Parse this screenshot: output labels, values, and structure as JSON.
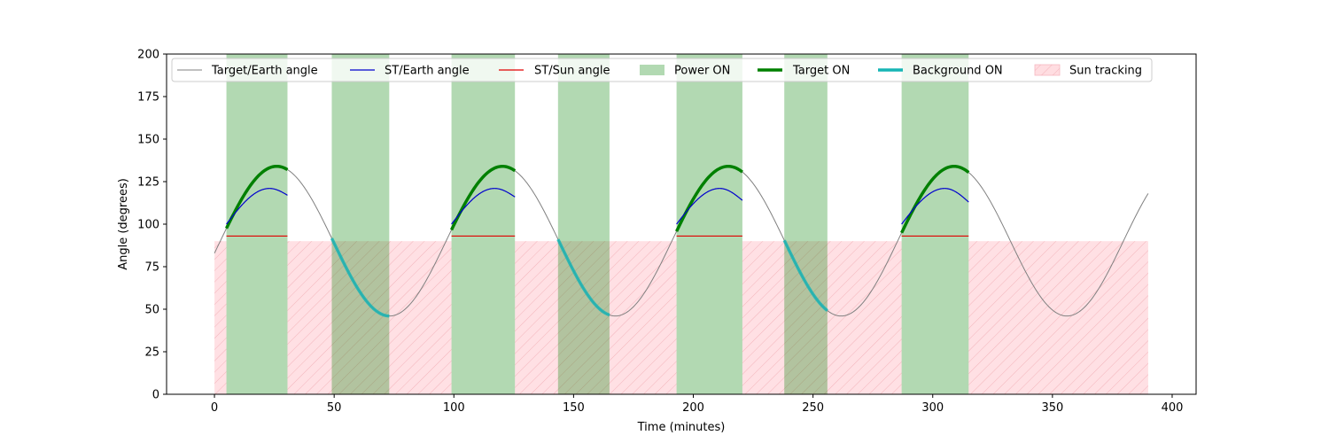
{
  "chart_data": {
    "type": "line",
    "title": "",
    "xlabel": "Time (minutes)",
    "ylabel": "Angle (degrees)",
    "xlim": [
      -20,
      410
    ],
    "ylim": [
      0,
      200
    ],
    "xticks": [
      0,
      50,
      100,
      150,
      200,
      250,
      300,
      350,
      400
    ],
    "yticks": [
      0,
      25,
      50,
      75,
      100,
      125,
      150,
      175,
      200
    ],
    "grid": false,
    "legend_position": "top",
    "period_minutes": 94.3,
    "target_earth_angle": {
      "mean": 90,
      "amplitude": 44,
      "phase_peak_minutes": 26
    },
    "series": [
      {
        "name": "Target/Earth angle",
        "color": "#808080",
        "kind": "line"
      },
      {
        "name": "ST/Earth angle",
        "color": "#0000cd",
        "kind": "line"
      },
      {
        "name": "ST/Sun angle",
        "color": "#e00000",
        "kind": "line"
      },
      {
        "name": "Power ON",
        "color": "#b3d9b3",
        "kind": "band"
      },
      {
        "name": "Target ON",
        "color": "#008000",
        "kind": "thick-line"
      },
      {
        "name": "Background ON",
        "color": "#17b5b5",
        "kind": "thick-line"
      },
      {
        "name": "Sun tracking",
        "color": "#ffdde1",
        "kind": "hatched-band"
      }
    ],
    "power_on_intervals": [
      [
        5,
        30.5
      ],
      [
        49,
        73
      ],
      [
        99,
        125.5
      ],
      [
        143.5,
        165
      ],
      [
        193,
        220.5
      ],
      [
        238,
        256
      ],
      [
        287,
        315
      ]
    ],
    "target_on_intervals": [
      [
        5,
        30.5
      ],
      [
        99,
        125.5
      ],
      [
        193,
        220.5
      ],
      [
        287,
        315
      ]
    ],
    "background_on_intervals": [
      [
        49,
        73
      ],
      [
        143.5,
        165
      ],
      [
        238,
        256
      ]
    ],
    "sun_tracking": {
      "y_max": 90,
      "intervals": [
        [
          0,
          5
        ],
        [
          30.5,
          99
        ],
        [
          125.5,
          193
        ],
        [
          220.5,
          287
        ],
        [
          315,
          390
        ]
      ]
    },
    "st_earth_segments": [
      {
        "x0": 5,
        "x1": 30.5,
        "y0": 100,
        "y_peak": 121,
        "x_peak": 23,
        "y1": 117
      },
      {
        "x0": 99,
        "x1": 125.5,
        "y0": 100,
        "y_peak": 121,
        "x_peak": 117,
        "y1": 116
      },
      {
        "x0": 193,
        "x1": 220.5,
        "y0": 100,
        "y_peak": 121,
        "x_peak": 211,
        "y1": 114
      },
      {
        "x0": 287,
        "x1": 315,
        "y0": 100,
        "y_peak": 121,
        "x_peak": 305,
        "y1": 113
      }
    ],
    "st_sun_segments": [
      {
        "x0": 5,
        "x1": 30.5,
        "y": 93
      },
      {
        "x0": 99,
        "x1": 125.5,
        "y": 93
      },
      {
        "x0": 193,
        "x1": 220.5,
        "y": 93
      },
      {
        "x0": 287,
        "x1": 315,
        "y": 93
      }
    ],
    "time_range": [
      0,
      390
    ]
  }
}
